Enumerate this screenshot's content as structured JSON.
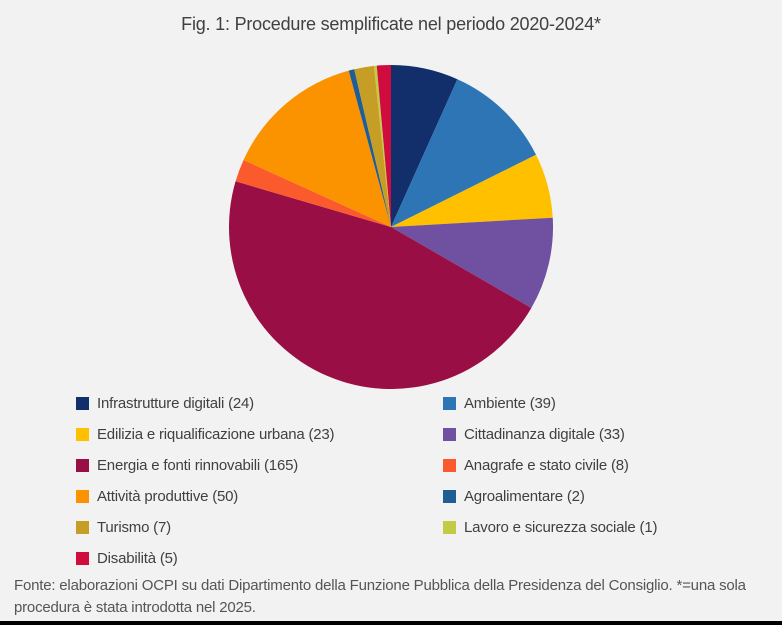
{
  "page": {
    "background_color": "#F2F2F2",
    "bottom_rule_color": "#000000",
    "text_color": "#404040"
  },
  "chart_data": {
    "type": "pie",
    "title": "Fig. 1: Procedure semplificate nel periodo 2020-2024*",
    "total": 357,
    "start_angle_deg": 0,
    "direction": "clockwise",
    "legend_position": "bottom",
    "legend_columns": 2,
    "slices": [
      {
        "label": "Infrastrutture digitali",
        "value": 24,
        "color": "#122E6B"
      },
      {
        "label": "Ambiente",
        "value": 39,
        "color": "#2E75B6"
      },
      {
        "label": "Edilizia e riqualificazione urbana",
        "value": 23,
        "color": "#FFC000"
      },
      {
        "label": "Cittadinanza digitale",
        "value": 33,
        "color": "#7050A0"
      },
      {
        "label": "Energia e fonti rinnovabili",
        "value": 165,
        "color": "#9A0E46"
      },
      {
        "label": "Anagrafe e stato civile",
        "value": 8,
        "color": "#FB5A2D"
      },
      {
        "label": "Attività produttive",
        "value": 50,
        "color": "#FB9300"
      },
      {
        "label": "Agroalimentare",
        "value": 2,
        "color": "#1F5D94"
      },
      {
        "label": "Turismo",
        "value": 7,
        "color": "#C69E25"
      },
      {
        "label": "Lavoro e sicurezza sociale",
        "value": 1,
        "color": "#C3CB44"
      },
      {
        "label": "Disabilità",
        "value": 5,
        "color": "#D00B3E"
      }
    ]
  },
  "footer": {
    "source_note": "Fonte: elaborazioni OCPI su dati Dipartimento della Funzione Pubblica della Presidenza del Consiglio. *=una sola procedura è stata introdotta nel 2025."
  }
}
